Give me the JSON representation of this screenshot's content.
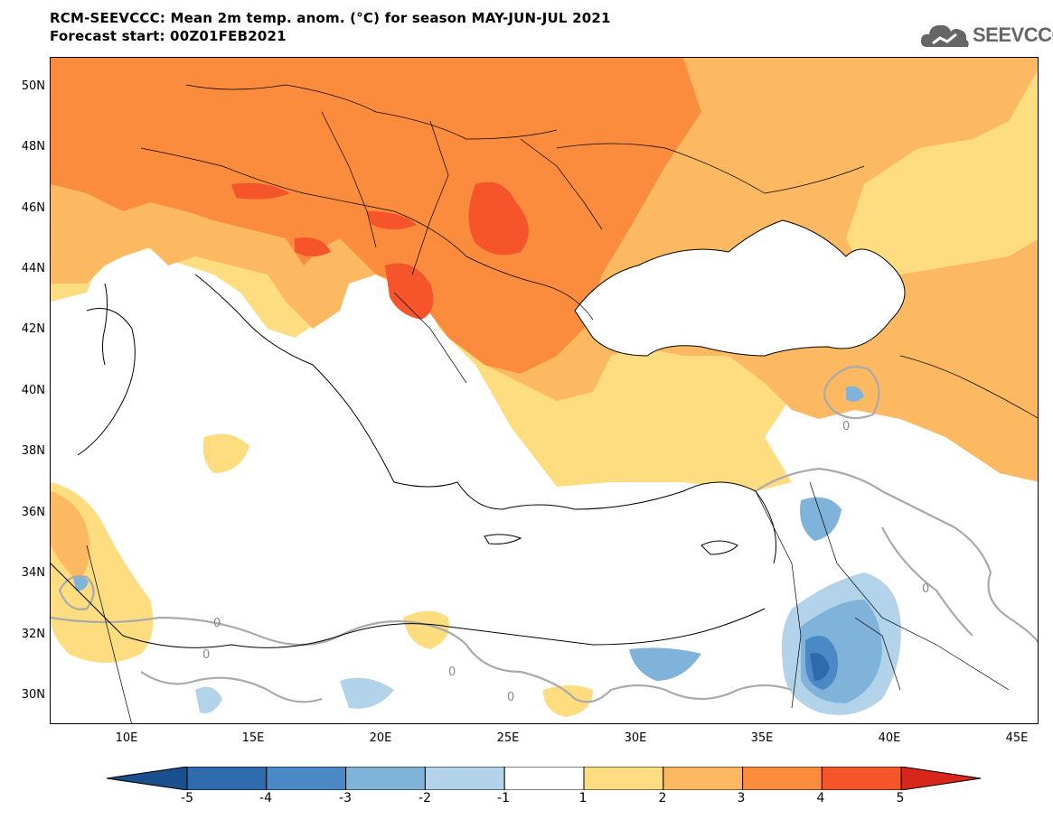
{
  "title_line1": "RCM-SEEVCCC: Mean 2m temp. anom. (°C) for season MAY-JUN-JUL 2021",
  "title_line2": "Forecast start: 00Z01FEB2021",
  "logo_text": "SEEVCCC",
  "lat_labels": [
    "50N",
    "48N",
    "46N",
    "44N",
    "42N",
    "40N",
    "38N",
    "36N",
    "34N",
    "32N",
    "30N"
  ],
  "lon_labels": [
    "10E",
    "15E",
    "20E",
    "25E",
    "30E",
    "35E",
    "40E",
    "45E"
  ],
  "contour_label": "0",
  "colorbar": {
    "labels": [
      "-5",
      "-4",
      "-3",
      "-2",
      "-1",
      "1",
      "2",
      "3",
      "4",
      "5"
    ],
    "colors": [
      "#1a4f8e",
      "#2f6aad",
      "#4a89c6",
      "#80b3da",
      "#b3d3ea",
      "#ffffff",
      "#fedc80",
      "#fdb862",
      "#fb8c3e",
      "#f6542a",
      "#d8261c"
    ]
  },
  "colors": {
    "sea": "#ffffff",
    "anom_1_2": "#fedc80",
    "anom_2_3": "#fdb862",
    "anom_3_4": "#fb8c3e",
    "anom_4_5": "#f6542a",
    "anom_m1_m2": "#b3d3ea",
    "anom_m2_m3": "#80b3da",
    "anom_m3_m4": "#4a89c6",
    "anom_m4_m5": "#2f6aad",
    "contour": "#aaaaaa"
  }
}
